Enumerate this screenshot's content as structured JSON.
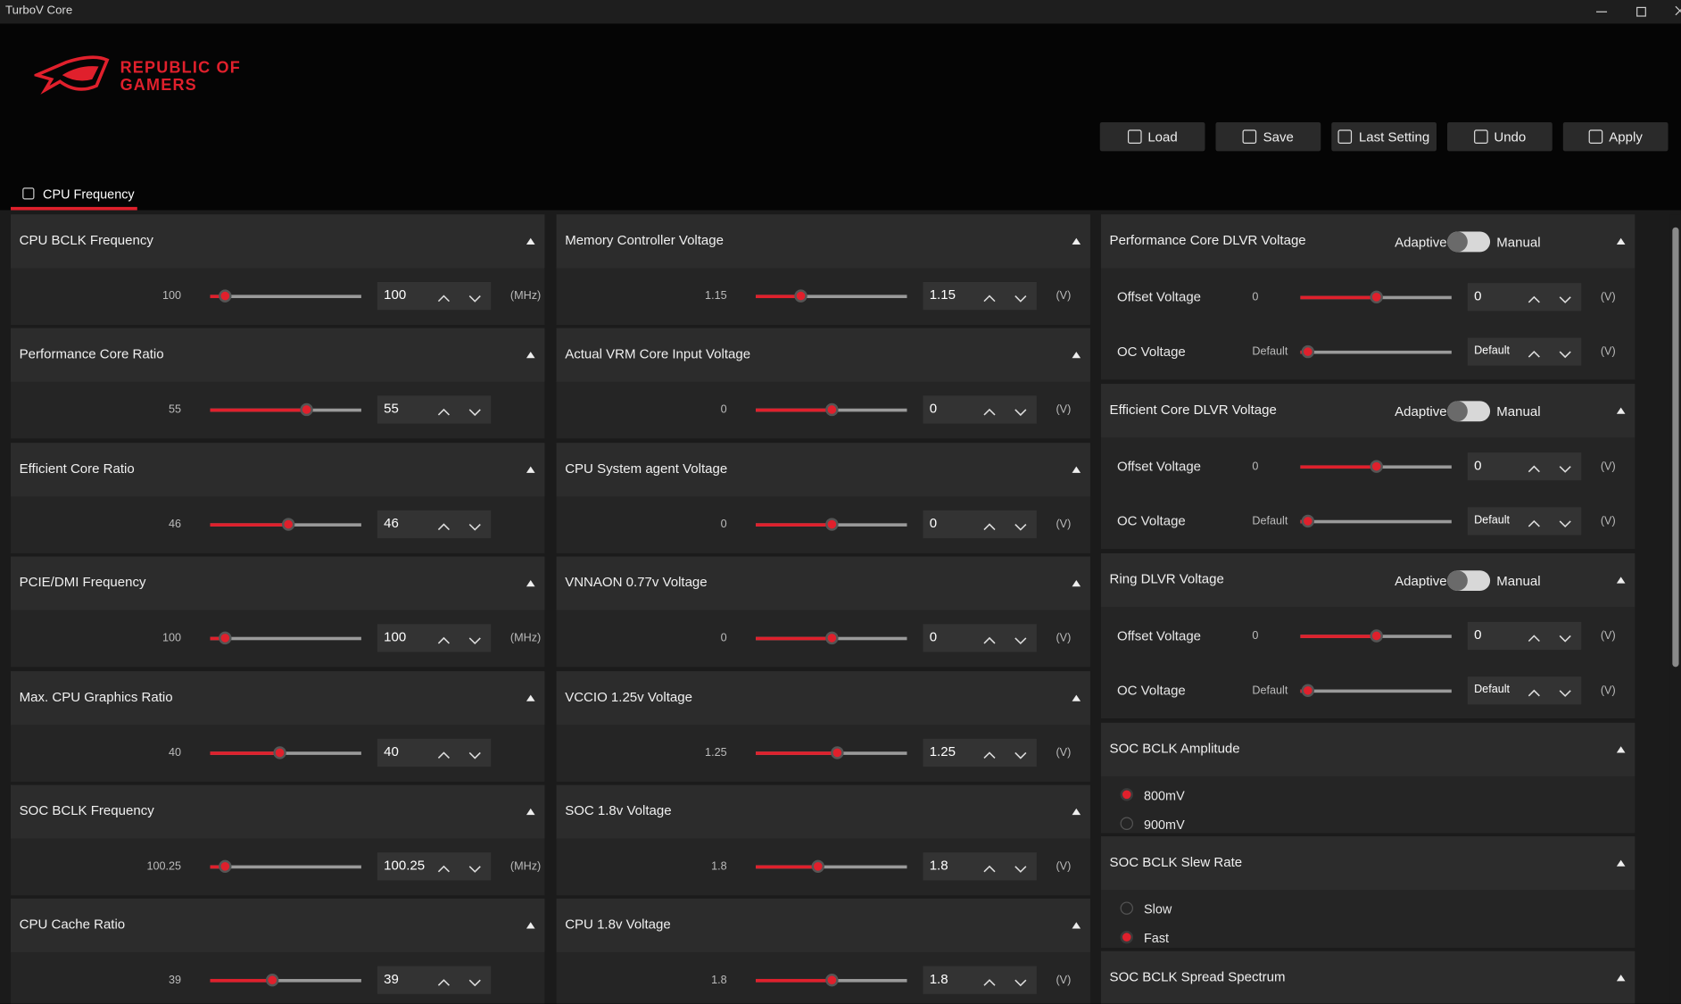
{
  "window": {
    "title": "TurboV Core"
  },
  "logo": {
    "line1": "REPUBLIC OF",
    "line2": "GAMERS"
  },
  "toolbar": [
    "Load",
    "Save",
    "Last Setting",
    "Undo",
    "Apply"
  ],
  "tab": "CPU Frequency",
  "frequency_panels": [
    {
      "title": "CPU BCLK Frequency",
      "default": "100",
      "value": "100",
      "unit": "(MHz)"
    },
    {
      "title": "Performance Core Ratio",
      "default": "55",
      "value": "55"
    },
    {
      "title": "Efficient Core Ratio",
      "default": "46",
      "value": "46"
    },
    {
      "title": "PCIE/DMI Frequency",
      "default": "100",
      "value": "100",
      "unit": "(MHz)"
    },
    {
      "title": "Max. CPU Graphics Ratio",
      "default": "40",
      "value": "40"
    },
    {
      "title": "SOC BCLK Frequency",
      "default": "100.25",
      "value": "100.25",
      "unit": "(MHz)"
    },
    {
      "title": "CPU Cache Ratio",
      "default": "39",
      "value": "39"
    }
  ],
  "voltage_panels": [
    {
      "title": "Memory Controller Voltage",
      "default": "1.15",
      "value": "1.15",
      "unit": "(V)"
    },
    {
      "title": "Actual VRM Core Input Voltage",
      "default": "0",
      "value": "0",
      "unit": "(V)"
    },
    {
      "title": "CPU System agent Voltage",
      "default": "0",
      "value": "0",
      "unit": "(V)"
    },
    {
      "title": "VNNAON 0.77v Voltage",
      "default": "0",
      "value": "0",
      "unit": "(V)"
    },
    {
      "title": "VCCIO 1.25v Voltage",
      "default": "1.25",
      "value": "1.25",
      "unit": "(V)"
    },
    {
      "title": "SOC 1.8v Voltage",
      "default": "1.8",
      "value": "1.8",
      "unit": "(V)"
    },
    {
      "title": "CPU 1.8v Voltage",
      "default": "1.8",
      "value": "1.8",
      "unit": "(V)"
    }
  ],
  "dlvr_panels": [
    {
      "title": "Performance Core DLVR Voltage",
      "mode_left": "Adaptive",
      "mode_right": "Manual",
      "rows": [
        {
          "label": "Offset Voltage",
          "default": "0",
          "value": "0",
          "unit": "(V)"
        },
        {
          "label": "OC Voltage",
          "default": "Default",
          "value": "Default",
          "unit": "(V)"
        }
      ]
    },
    {
      "title": "Efficient Core DLVR Voltage",
      "mode_left": "Adaptive",
      "mode_right": "Manual",
      "rows": [
        {
          "label": "Offset Voltage",
          "default": "0",
          "value": "0",
          "unit": "(V)"
        },
        {
          "label": "OC Voltage",
          "default": "Default",
          "value": "Default",
          "unit": "(V)"
        }
      ]
    },
    {
      "title": "Ring DLVR Voltage",
      "mode_left": "Adaptive",
      "mode_right": "Manual",
      "rows": [
        {
          "label": "Offset Voltage",
          "default": "0",
          "value": "0",
          "unit": "(V)"
        },
        {
          "label": "OC Voltage",
          "default": "Default",
          "value": "Default",
          "unit": "(V)"
        }
      ]
    }
  ],
  "radio_panels": [
    {
      "title": "SOC BCLK Amplitude",
      "options": [
        "800mV",
        "900mV"
      ],
      "selected": 0
    },
    {
      "title": "SOC BCLK Slew Rate",
      "options": [
        "Slow",
        "Fast"
      ],
      "selected": 1
    },
    {
      "title": "SOC BCLK Spread Spectrum"
    }
  ]
}
